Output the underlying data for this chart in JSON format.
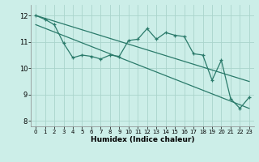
{
  "title": "",
  "xlabel": "Humidex (Indice chaleur)",
  "ylabel": "",
  "background_color": "#cceee8",
  "grid_color": "#aad4cc",
  "line_color": "#2a7a6a",
  "xlim": [
    -0.5,
    23.5
  ],
  "ylim": [
    7.8,
    12.4
  ],
  "x_ticks": [
    0,
    1,
    2,
    3,
    4,
    5,
    6,
    7,
    8,
    9,
    10,
    11,
    12,
    13,
    14,
    15,
    16,
    17,
    18,
    19,
    20,
    21,
    22,
    23
  ],
  "y_ticks": [
    8,
    9,
    10,
    11,
    12
  ],
  "data_line": {
    "x": [
      0,
      1,
      2,
      3,
      4,
      5,
      6,
      7,
      8,
      9,
      10,
      11,
      12,
      13,
      14,
      15,
      16,
      17,
      18,
      19,
      20,
      21,
      22,
      23
    ],
    "y": [
      12.0,
      11.85,
      11.65,
      10.95,
      10.4,
      10.5,
      10.45,
      10.35,
      10.5,
      10.45,
      11.05,
      11.1,
      11.5,
      11.1,
      11.35,
      11.25,
      11.2,
      10.55,
      10.5,
      9.55,
      10.3,
      8.85,
      8.48,
      8.9
    ]
  },
  "upper_line": {
    "x": [
      0,
      23
    ],
    "y": [
      12.0,
      9.5
    ]
  },
  "lower_line": {
    "x": [
      0,
      23
    ],
    "y": [
      11.65,
      8.48
    ]
  }
}
